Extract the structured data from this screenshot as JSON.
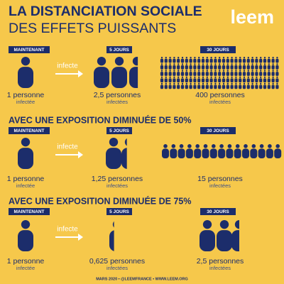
{
  "header": {
    "title": "LA DISTANCIATION SOCIALE",
    "subtitle": "DES EFFETS PUISSANTS",
    "logo": "leem"
  },
  "scenarios": [
    {
      "verb": "infecte",
      "stages": [
        {
          "label": "MAINTENANT",
          "count": "1 personne",
          "note": "infectée"
        },
        {
          "label": "5 JOURS",
          "count": "2,5 personnes",
          "note": "infectées"
        },
        {
          "label": "30 JOURS",
          "count": "400 personnes",
          "note": "infectées"
        }
      ]
    },
    {
      "heading": "AVEC UNE EXPOSITION DIMINUÉE DE 50%",
      "verb": "infecte",
      "stages": [
        {
          "label": "MAINTENANT",
          "count": "1 personne",
          "note": "infectée"
        },
        {
          "label": "5 JOURS",
          "count": "1,25 personnes",
          "note": "infectées"
        },
        {
          "label": "30 JOURS",
          "count": "15 personnes",
          "note": "infectées"
        }
      ]
    },
    {
      "heading": "AVEC UNE EXPOSITION DIMINUÉE DE 75%",
      "verb": "infecte",
      "stages": [
        {
          "label": "MAINTENANT",
          "count": "1 personne",
          "note": "infectée"
        },
        {
          "label": "5 JOURS",
          "count": "0,625 personnes",
          "note": "infectées"
        },
        {
          "label": "30 JOURS",
          "count": "2,5 personnes",
          "note": "infectées"
        }
      ]
    }
  ],
  "footer": "MARS 2020 • @LEEMFRANCE • WWW.LEEM.ORG"
}
